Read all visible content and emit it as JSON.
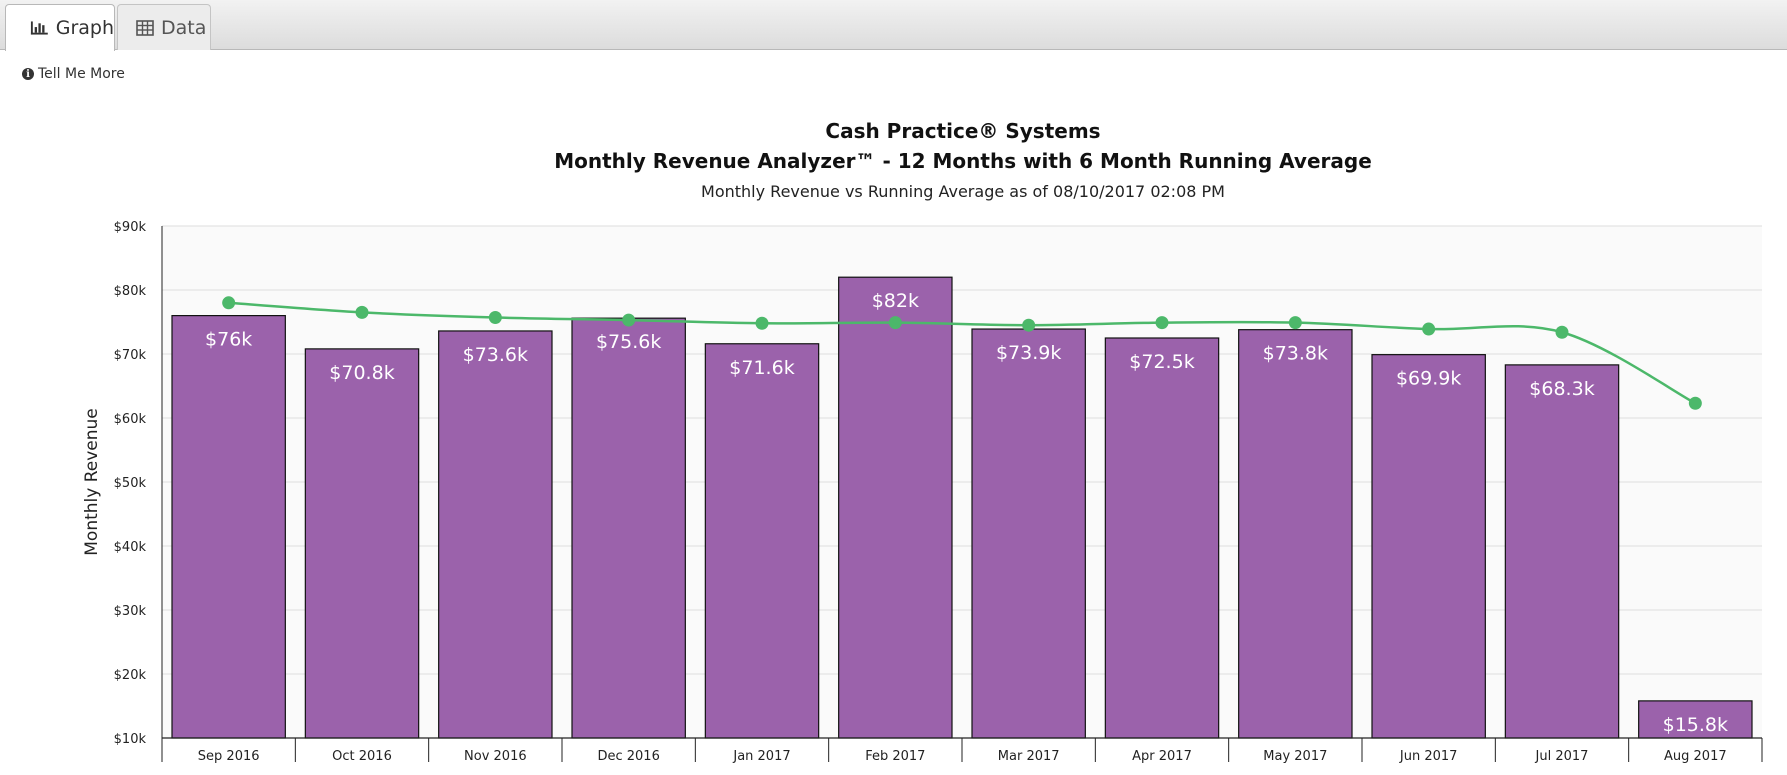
{
  "tabs": [
    {
      "label": "Graph",
      "icon": "bar-chart-icon",
      "active": true
    },
    {
      "label": "Data",
      "icon": "table-icon",
      "active": false
    }
  ],
  "tell_me_more": "Tell Me More",
  "chart_data": {
    "type": "bar",
    "title": "Cash Practice® Systems",
    "title2": "Monthly Revenue Analyzer™ - 12 Months with 6 Month Running Average",
    "subtitle": "Monthly Revenue vs Running Average as of 08/10/2017 02:08 PM",
    "xlabel": "",
    "ylabel": "Monthly Revenue",
    "ylim": [
      10000,
      90000
    ],
    "yticks": [
      10000,
      20000,
      30000,
      40000,
      50000,
      60000,
      70000,
      80000,
      90000
    ],
    "ytick_labels": [
      "$10k",
      "$20k",
      "$30k",
      "$40k",
      "$50k",
      "$60k",
      "$70k",
      "$80k",
      "$90k"
    ],
    "grid": true,
    "categories": [
      "Sep 2016",
      "Oct 2016",
      "Nov 2016",
      "Dec 2016",
      "Jan 2017",
      "Feb 2017",
      "Mar 2017",
      "Apr 2017",
      "May 2017",
      "Jun 2017",
      "Jul 2017",
      "Aug 2017"
    ],
    "series": [
      {
        "type": "bar",
        "values": [
          76000,
          70800,
          73600,
          75600,
          71600,
          82000,
          73900,
          72500,
          73800,
          69900,
          68300,
          15800
        ],
        "labels": [
          "$76k",
          "$70.8k",
          "$73.6k",
          "$75.6k",
          "$71.6k",
          "$82k",
          "$73.9k",
          "$72.5k",
          "$73.8k",
          "$69.9k",
          "$68.3k",
          "$15.8k"
        ],
        "color": "#9b62ab"
      },
      {
        "type": "line",
        "values": [
          78000,
          76500,
          75700,
          75300,
          74800,
          74900,
          74500,
          74900,
          74900,
          73900,
          73400,
          62300
        ],
        "color": "#4cb86a"
      }
    ]
  }
}
